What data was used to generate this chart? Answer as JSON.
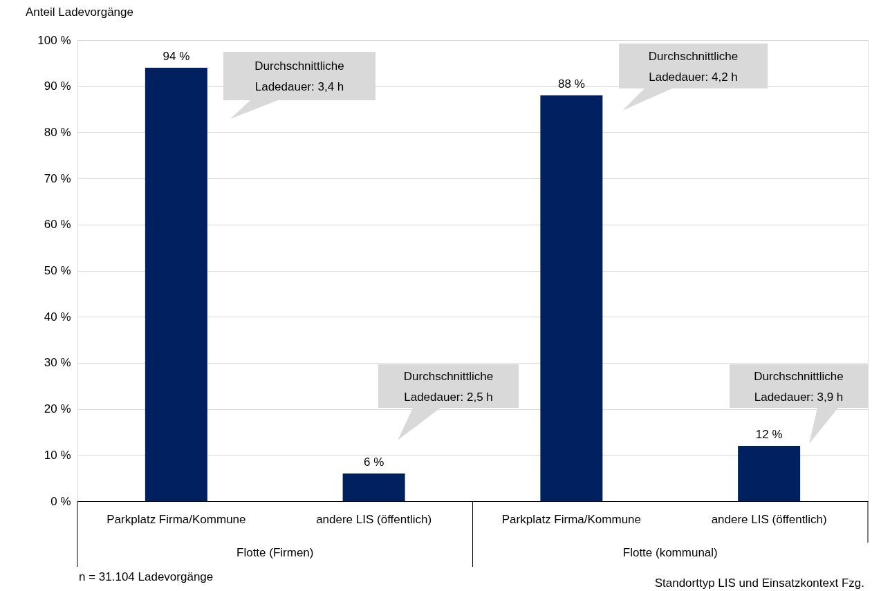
{
  "chart_data": {
    "type": "bar",
    "ylabel": "Anteil Ladevorgänge",
    "xlabel": "Standorttyp LIS und Einsatzkontext Fzg.",
    "categories": [
      "Parkplatz Firma/Kommune",
      "andere LIS (öffentlich)",
      "Parkplatz Firma/Kommune",
      "andere LIS (öffentlich)"
    ],
    "values": [
      94,
      6,
      88,
      12
    ],
    "color": "#002060",
    "value_labels": [
      "94 %",
      "6 %",
      "88 %",
      "12 %"
    ],
    "ylim": [
      0,
      100
    ],
    "yticks": [
      {
        "value": 0,
        "label": "0 %"
      },
      {
        "value": 10,
        "label": "10 %"
      },
      {
        "value": 20,
        "label": "20 %"
      },
      {
        "value": 30,
        "label": "30 %"
      },
      {
        "value": 40,
        "label": "40 %"
      },
      {
        "value": 50,
        "label": "50 %"
      },
      {
        "value": 60,
        "label": "60 %"
      },
      {
        "value": 70,
        "label": "70 %"
      },
      {
        "value": 80,
        "label": "80 %"
      },
      {
        "value": 90,
        "label": "90 %"
      },
      {
        "value": 100,
        "label": "100 %"
      }
    ],
    "grid": "y",
    "annotations": [
      "Durchschnittliche Ladedauer: 3,4 h",
      "Durchschnittliche Ladedauer: 2,5 h",
      "Durchschnittliche Ladedauer: 4,2 h",
      "Durchschnittliche Ladedauer: 3,9 h",
      "Flotte (Firmen)",
      "Flotte (kommunal)",
      "n = 31.104 Ladevorgänge"
    ]
  }
}
